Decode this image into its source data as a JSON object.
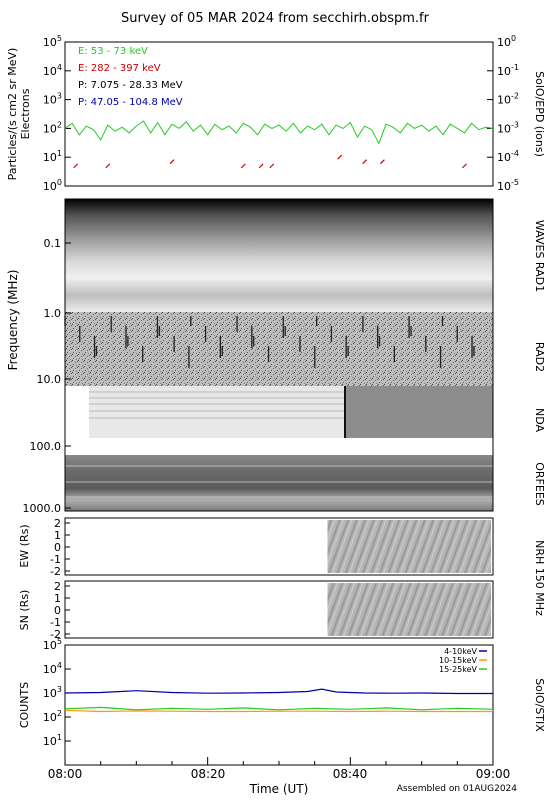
{
  "header": {
    "title": "Survey of 05 MAR 2024 from secchirh.obspm.fr",
    "footer": "Assembled on 01AUG2024"
  },
  "time_axis": {
    "label": "Time (UT)",
    "ticks": [
      "08:00",
      "08:20",
      "08:40",
      "09:00"
    ],
    "range_minutes": [
      0,
      60
    ]
  },
  "chart_data": [
    {
      "id": "particles",
      "type": "line",
      "ylabel": "Particles/(s cm2 sr MeV)",
      "ylabel2": "Electrons",
      "right_label": "SolO/EPD  (ions)",
      "left_ticks": [
        "10^0",
        "10^1",
        "10^2",
        "10^3",
        "10^4",
        "10^5"
      ],
      "right_ticks": [
        "10^-5",
        "10^-4",
        "10^-3",
        "10^-2",
        "10^-1",
        "10^0"
      ],
      "yscale": "log",
      "ylim": [
        1,
        100000
      ],
      "legend": [
        {
          "name": "E: 53 - 73 keV",
          "color": "#22cc22"
        },
        {
          "name": "E: 282 - 397 keV",
          "color": "#cc0000"
        },
        {
          "name": "P: 7.075 - 28.33 MeV",
          "color": "#000000"
        },
        {
          "name": "P: 47.05 - 104.8 MeV",
          "color": "#0000aa"
        }
      ],
      "series": [
        {
          "name": "E: 53 - 73 keV",
          "color": "#22cc22",
          "x": [
            0,
            1,
            2,
            3,
            4,
            5,
            6,
            7,
            8,
            9,
            10,
            11,
            12,
            13,
            14,
            15,
            16,
            17,
            18,
            19,
            20,
            21,
            22,
            23,
            24,
            25,
            26,
            27,
            28,
            29,
            30,
            31,
            32,
            33,
            34,
            35,
            36,
            37,
            38,
            39,
            40,
            41,
            42,
            43,
            44,
            45,
            46,
            47,
            48,
            49,
            50,
            51,
            52,
            53,
            54,
            55,
            56,
            57,
            58,
            59,
            60
          ],
          "y": [
            100,
            150,
            60,
            120,
            90,
            40,
            130,
            80,
            110,
            70,
            120,
            180,
            70,
            160,
            60,
            140,
            100,
            170,
            80,
            130,
            60,
            140,
            90,
            120,
            70,
            150,
            110,
            60,
            140,
            100,
            130,
            80,
            150,
            70,
            120,
            90,
            140,
            60,
            130,
            100,
            160,
            50,
            120,
            90,
            30,
            140,
            110,
            70,
            150,
            100,
            130,
            80,
            120,
            60,
            140,
            100,
            70,
            150,
            90,
            110,
            100
          ]
        },
        {
          "name": "E: 282 - 397 keV",
          "color": "#cc0000",
          "x": [
            1.5,
            6,
            15,
            25,
            27.5,
            29,
            38.5,
            42,
            44.5,
            56
          ],
          "y": [
            5,
            5,
            7,
            5,
            5,
            5,
            10,
            7,
            7,
            5
          ]
        }
      ]
    },
    {
      "id": "radio",
      "type": "heatmap",
      "ylabel": "Frequency (MHz)",
      "yscale": "log",
      "ticks": [
        "0.1",
        "1.0",
        "10.0",
        "100.0",
        "1000.0"
      ],
      "instruments": [
        "WAVES RAD1",
        "RAD2",
        "NDA",
        "ORFEES"
      ]
    },
    {
      "id": "nrh_ew",
      "type": "heatmap",
      "ylabel": "EW (Rs)",
      "ticks": [
        "2",
        "1",
        "0",
        "-1",
        "-2"
      ],
      "data_start_minutes": 36.8
    },
    {
      "id": "nrh_sn",
      "type": "heatmap",
      "ylabel": "SN (Rs)",
      "ticks": [
        "2",
        "1",
        "0",
        "-1",
        "-2"
      ],
      "data_start_minutes": 36.8
    },
    {
      "id": "stix",
      "type": "line",
      "ylabel": "COUNTS",
      "right_label": "SolO/STIX",
      "yscale": "log",
      "ylim": [
        1,
        100000
      ],
      "ticks": [
        "10^1",
        "10^2",
        "10^3",
        "10^4",
        "10^5"
      ],
      "legend": [
        {
          "name": "4-10keV",
          "color": "#0000aa"
        },
        {
          "name": "10-15keV",
          "color": "#ff9900"
        },
        {
          "name": "15-25keV",
          "color": "#22cc22"
        }
      ],
      "series": [
        {
          "name": "4-10keV",
          "color": "#0000aa",
          "x": [
            0,
            5,
            10,
            15,
            20,
            25,
            30,
            34,
            36,
            38,
            42,
            46,
            50,
            55,
            60
          ],
          "y": [
            1000,
            1050,
            1250,
            1050,
            980,
            1000,
            1050,
            1150,
            1450,
            1100,
            1000,
            980,
            1000,
            950,
            950
          ]
        },
        {
          "name": "10-15keV",
          "color": "#ff9900",
          "x": [
            0,
            5,
            10,
            15,
            20,
            25,
            30,
            35,
            40,
            45,
            50,
            55,
            60
          ],
          "y": [
            190,
            170,
            180,
            175,
            170,
            170,
            175,
            175,
            170,
            175,
            170,
            170,
            170
          ]
        },
        {
          "name": "15-25keV",
          "color": "#22cc22",
          "x": [
            0,
            5,
            10,
            15,
            20,
            25,
            30,
            35,
            40,
            45,
            50,
            55,
            60
          ],
          "y": [
            220,
            250,
            200,
            230,
            210,
            240,
            200,
            230,
            210,
            240,
            200,
            230,
            210
          ]
        }
      ]
    }
  ],
  "nrh_label": "NRH 150 MHz"
}
